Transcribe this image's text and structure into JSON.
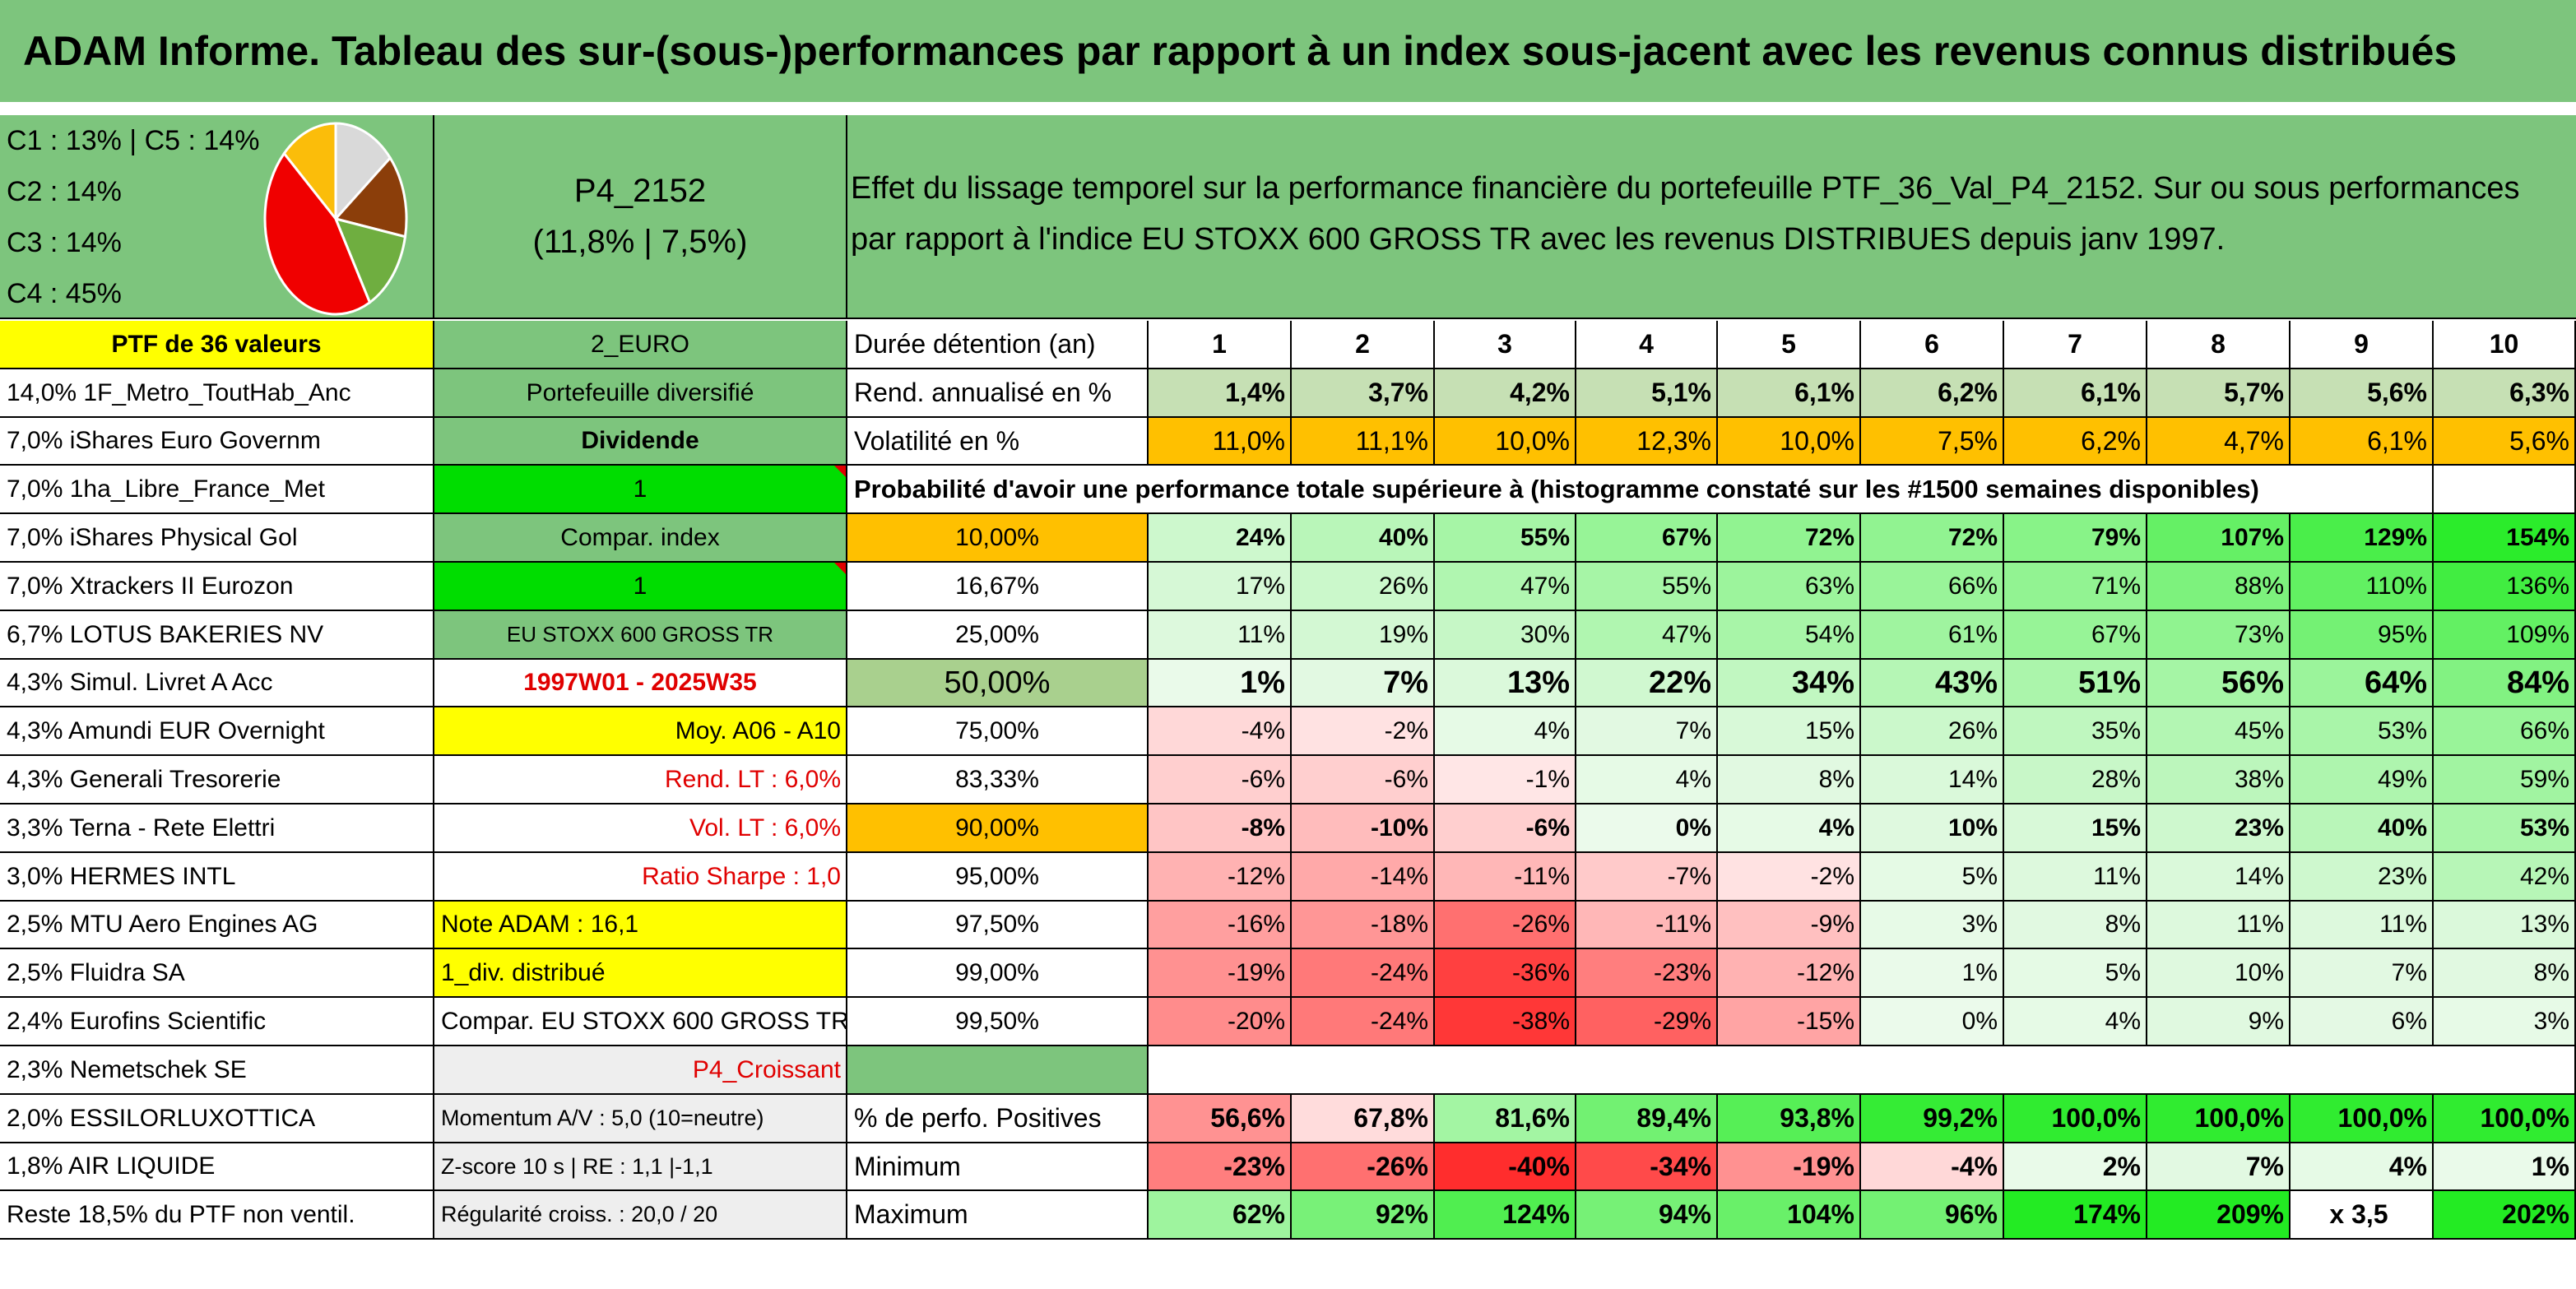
{
  "title": "ADAM Informe. Tableau des sur-(sous-)performances par rapport à un index sous-jacent avec les revenus connus distribués",
  "pie": {
    "labels": [
      "C1 : 13% | C5 : 14%",
      "C2 : 14%",
      "C3 : 14%",
      "C4 : 45%"
    ],
    "slices": [
      {
        "name": "C1",
        "value": 13,
        "color": "#fbbd0a"
      },
      {
        "name": "C5",
        "value": 14,
        "color": "#d9d9d9"
      },
      {
        "name": "C2",
        "value": 14,
        "color": "#8b3e0a"
      },
      {
        "name": "C3",
        "value": 14,
        "color": "#6fae40"
      },
      {
        "name": "C4",
        "value": 45,
        "color": "#f00000"
      }
    ]
  },
  "portfolio": {
    "code": "P4_2152",
    "perf": "(11,8% | 7,5%)"
  },
  "description": "Effet du lissage temporel sur la performance financière du portefeuille PTF_36_Val_P4_2152. Sur ou sous performances par rapport à l'indice EU STOXX 600 GROSS TR avec les revenus DISTRIBUES depuis janv 1997.",
  "holdings_header": "PTF de 36 valeurs",
  "holdings": [
    "14,0% 1F_Metro_ToutHab_Anc",
    "7,0% iShares Euro Governm",
    "7,0% 1ha_Libre_France_Met",
    "7,0% iShares Physical Gol",
    "7,0% Xtrackers II Eurozon",
    "6,7% LOTUS BAKERIES NV",
    "4,3% Simul. Livret A Acc",
    "4,3% Amundi EUR Overnight",
    "4,3% Generali Tresorerie",
    "3,3% Terna - Rete Elettri",
    "3,0% HERMES INTL",
    "2,5% MTU Aero Engines AG",
    "2,5% Fluidra SA",
    "2,4% Eurofins Scientific",
    "2,3% Nemetschek SE",
    "2,0% ESSILORLUXOTTICA",
    "1,8% AIR LIQUIDE",
    "Reste 18,5% du PTF non ventil."
  ],
  "params": [
    "2_EURO",
    "Portefeuille diversifié",
    "Dividende",
    "1",
    "Compar. index",
    "1",
    "EU STOXX 600 GROSS TR",
    "1997W01 - 2025W35",
    "Moy. A06 - A10",
    "Rend. LT : 6,0%",
    "Vol. LT : 6,0%",
    "Ratio Sharpe : 1,0",
    "Note ADAM : 16,1",
    "1_div. distribué",
    "Compar. EU STOXX 600 GROSS TR",
    "P4_Croissant",
    "Momentum A/V : 5,0 (10=neutre)",
    "Z-score 10 s | RE : 1,1 |-1,1",
    "Régularité croiss. : 20,0 / 20"
  ],
  "labels": {
    "duree": "Durée détention (an)",
    "rend": "Rend. annualisé en %",
    "vol": "Volatilité en %",
    "prob": "Probabilité d'avoir une performance totale supérieure à (histogramme constaté sur les #1500 semaines disponibles)",
    "pos": "% de perfo. Positives",
    "min": "Minimum",
    "max": "Maximum"
  },
  "years": [
    "1",
    "2",
    "3",
    "4",
    "5",
    "6",
    "7",
    "8",
    "9",
    "10"
  ],
  "rendement": [
    "1,4%",
    "3,7%",
    "4,2%",
    "5,1%",
    "6,1%",
    "6,2%",
    "6,1%",
    "5,7%",
    "5,6%",
    "6,3%"
  ],
  "volatilite": [
    "11,0%",
    "11,1%",
    "10,0%",
    "12,3%",
    "10,0%",
    "7,5%",
    "6,2%",
    "4,7%",
    "6,1%",
    "5,6%"
  ],
  "quantiles": [
    {
      "q": "10,00%",
      "v": [
        "24%",
        "40%",
        "55%",
        "67%",
        "72%",
        "72%",
        "79%",
        "107%",
        "129%",
        "154%"
      ]
    },
    {
      "q": "16,67%",
      "v": [
        "17%",
        "26%",
        "47%",
        "55%",
        "63%",
        "66%",
        "71%",
        "88%",
        "110%",
        "136%"
      ]
    },
    {
      "q": "25,00%",
      "v": [
        "11%",
        "19%",
        "30%",
        "47%",
        "54%",
        "61%",
        "67%",
        "73%",
        "95%",
        "109%"
      ]
    },
    {
      "q": "50,00%",
      "v": [
        "1%",
        "7%",
        "13%",
        "22%",
        "34%",
        "43%",
        "51%",
        "56%",
        "64%",
        "84%"
      ]
    },
    {
      "q": "75,00%",
      "v": [
        "-4%",
        "-2%",
        "4%",
        "7%",
        "15%",
        "26%",
        "35%",
        "45%",
        "53%",
        "66%"
      ]
    },
    {
      "q": "83,33%",
      "v": [
        "-6%",
        "-6%",
        "-1%",
        "4%",
        "8%",
        "14%",
        "28%",
        "38%",
        "49%",
        "59%"
      ]
    },
    {
      "q": "90,00%",
      "v": [
        "-8%",
        "-10%",
        "-6%",
        "0%",
        "4%",
        "10%",
        "15%",
        "23%",
        "40%",
        "53%"
      ]
    },
    {
      "q": "95,00%",
      "v": [
        "-12%",
        "-14%",
        "-11%",
        "-7%",
        "-2%",
        "5%",
        "11%",
        "14%",
        "23%",
        "42%"
      ]
    },
    {
      "q": "97,50%",
      "v": [
        "-16%",
        "-18%",
        "-26%",
        "-11%",
        "-9%",
        "3%",
        "8%",
        "11%",
        "11%",
        "13%"
      ]
    },
    {
      "q": "99,00%",
      "v": [
        "-19%",
        "-24%",
        "-36%",
        "-23%",
        "-12%",
        "1%",
        "5%",
        "10%",
        "7%",
        "8%"
      ]
    },
    {
      "q": "99,50%",
      "v": [
        "-20%",
        "-24%",
        "-38%",
        "-29%",
        "-15%",
        "0%",
        "4%",
        "9%",
        "6%",
        "3%"
      ]
    }
  ],
  "positives": [
    "56,6%",
    "67,8%",
    "81,6%",
    "89,4%",
    "93,8%",
    "99,2%",
    "100,0%",
    "100,0%",
    "100,0%",
    "100,0%"
  ],
  "minimum": [
    "-23%",
    "-26%",
    "-40%",
    "-34%",
    "-19%",
    "-4%",
    "2%",
    "7%",
    "4%",
    "1%"
  ],
  "maximum": [
    "62%",
    "92%",
    "124%",
    "94%",
    "104%",
    "96%",
    "174%",
    "209%",
    "x 3,5",
    "202%"
  ]
}
